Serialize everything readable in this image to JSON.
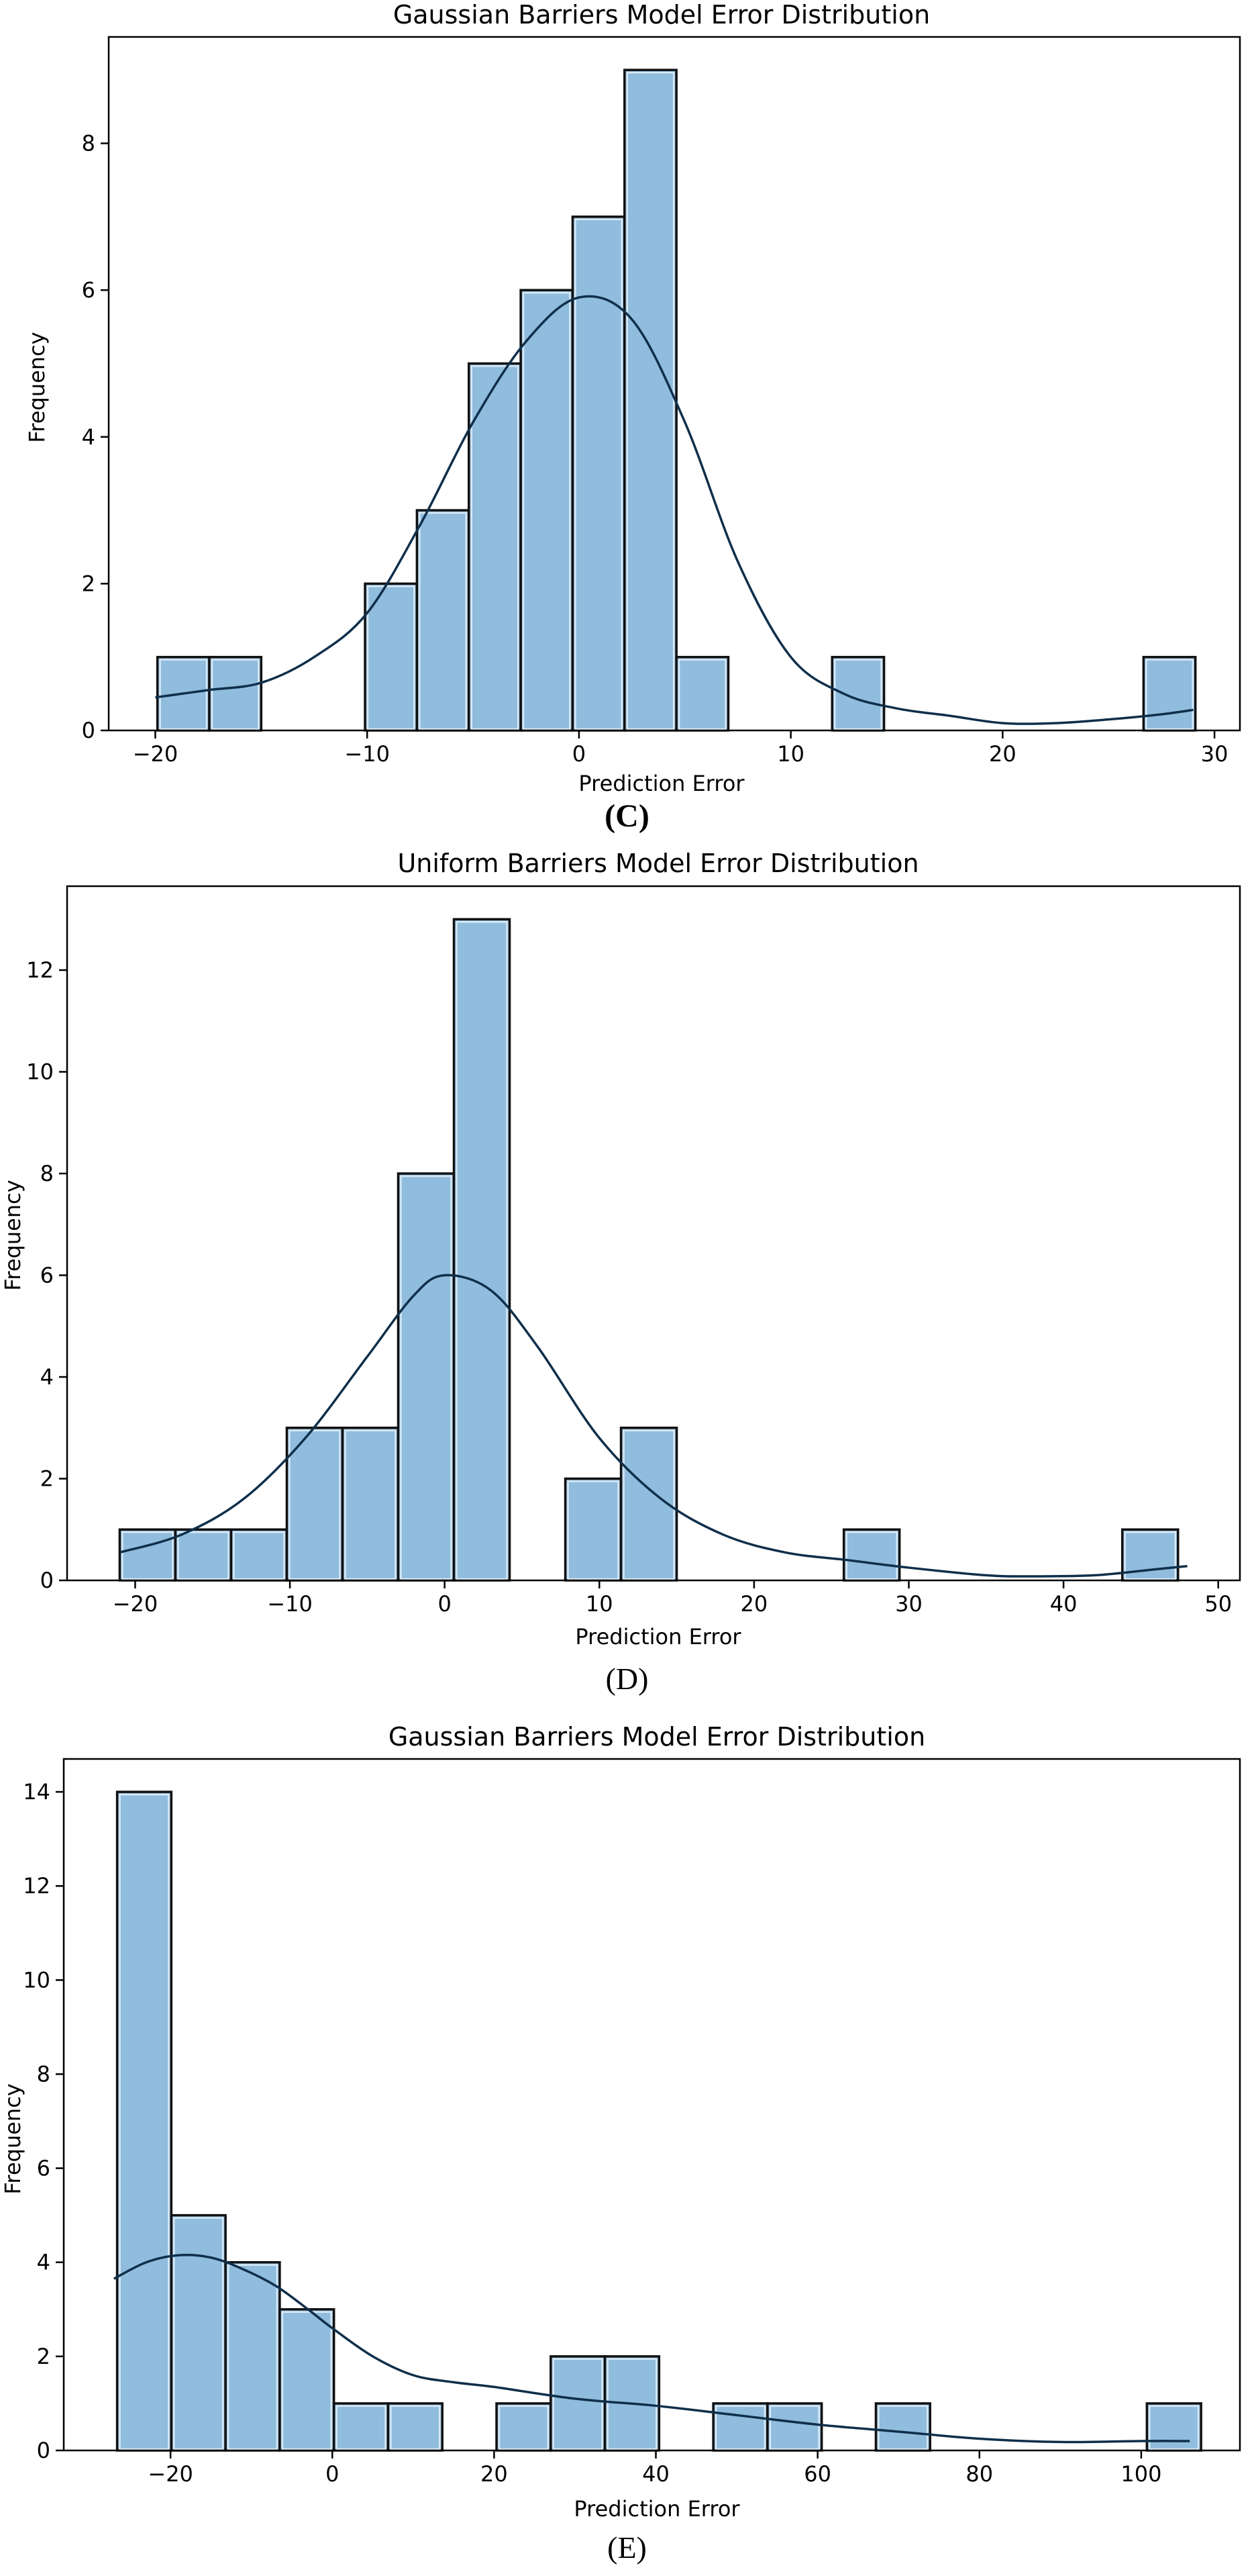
{
  "charts": [
    {
      "title": "Gaussian Barriers Model Error Distribution",
      "xlabel": "Prediction Error",
      "ylabel": "Frequency",
      "panel_label": "(C)"
    },
    {
      "title": "Uniform Barriers Model Error Distribution",
      "xlabel": "Prediction Error",
      "ylabel": "Frequency",
      "panel_label": "(D)"
    },
    {
      "title": "Gaussian Barriers Model Error Distribution",
      "xlabel": "Prediction Error",
      "ylabel": "Frequency",
      "panel_label": "(E)"
    }
  ],
  "colors": {
    "bar_fill": "#90bcdd",
    "bar_edge": "#111111",
    "bar_inner": "#d8e8f4",
    "kde": "#0f2f4a",
    "axis": "#000000"
  },
  "chart_data": [
    {
      "type": "bar",
      "title": "Gaussian Barriers Model Error Distribution",
      "xlabel": "Prediction Error",
      "ylabel": "Frequency",
      "xlim": [
        -22.2,
        31.2
      ],
      "ylim": [
        0,
        9.45
      ],
      "xticks": [
        -20,
        -10,
        0,
        10,
        20,
        30
      ],
      "yticks": [
        0,
        2,
        4,
        6,
        8
      ],
      "bin_edges": [
        -19.9,
        -17.45,
        -15.0,
        -12.55,
        -10.1,
        -7.65,
        -5.2,
        -2.75,
        -0.3,
        2.15,
        4.6,
        7.05,
        9.5,
        11.95,
        14.4,
        16.85,
        19.3,
        21.75,
        24.2,
        26.65,
        29.1
      ],
      "values": [
        1,
        1,
        0,
        0,
        2,
        3,
        5,
        6,
        7,
        9,
        1,
        0,
        0,
        1,
        0,
        0,
        0,
        0,
        0,
        1
      ],
      "kde": {
        "x": [
          -20,
          -17.5,
          -15,
          -12.5,
          -10,
          -7.5,
          -5,
          -2.5,
          0,
          2.5,
          5,
          7.5,
          10,
          12.5,
          15,
          17.5,
          20,
          22.5,
          25,
          27.5,
          29
        ],
        "y": [
          0.45,
          0.55,
          0.65,
          1.0,
          1.6,
          2.8,
          4.2,
          5.3,
          5.9,
          5.6,
          4.2,
          2.3,
          1.0,
          0.5,
          0.3,
          0.2,
          0.1,
          0.1,
          0.15,
          0.22,
          0.28
        ]
      }
    },
    {
      "type": "bar",
      "title": "Uniform Barriers Model Error Distribution",
      "xlabel": "Prediction Error",
      "ylabel": "Frequency",
      "xlim": [
        -24.4,
        51.4
      ],
      "ylim": [
        0,
        13.65
      ],
      "xticks": [
        -20,
        -10,
        0,
        10,
        20,
        30,
        40,
        50
      ],
      "yticks": [
        0,
        2,
        4,
        6,
        8,
        10,
        12
      ],
      "bin_edges": [
        -21.0,
        -17.4,
        -13.8,
        -10.2,
        -6.6,
        -3.0,
        0.6,
        4.2,
        7.8,
        11.4,
        15.0,
        18.6,
        22.2,
        25.8,
        29.4,
        33.0,
        36.6,
        40.2,
        43.8,
        47.4
      ],
      "values": [
        1,
        1,
        1,
        3,
        3,
        8,
        13,
        0,
        2,
        3,
        0,
        0,
        0,
        1,
        0,
        0,
        0,
        0,
        1
      ],
      "kde": {
        "x": [
          -21,
          -17,
          -13,
          -9,
          -5,
          -2,
          0,
          3,
          6,
          10,
          14,
          18,
          22,
          26,
          30,
          35,
          38,
          42,
          46,
          48
        ],
        "y": [
          0.55,
          0.9,
          1.6,
          2.8,
          4.4,
          5.6,
          6.0,
          5.7,
          4.6,
          2.8,
          1.6,
          0.9,
          0.55,
          0.4,
          0.25,
          0.1,
          0.08,
          0.1,
          0.22,
          0.28
        ]
      }
    },
    {
      "type": "bar",
      "title": "Gaussian Barriers Model Error Distribution",
      "xlabel": "Prediction Error",
      "ylabel": "Frequency",
      "xlim": [
        -33.2,
        112.2
      ],
      "ylim": [
        0,
        14.7
      ],
      "xticks": [
        -20,
        0,
        20,
        40,
        60,
        80,
        100
      ],
      "yticks": [
        0,
        2,
        4,
        6,
        8,
        10,
        12,
        14
      ],
      "bin_edges": [
        -26.6,
        -19.9,
        -13.2,
        -6.5,
        0.2,
        6.9,
        13.6,
        20.3,
        27.0,
        33.7,
        40.4,
        47.1,
        53.8,
        60.5,
        67.2,
        73.9,
        80.6,
        87.3,
        94.0,
        100.7,
        107.4
      ],
      "values": [
        14,
        5,
        4,
        3,
        1,
        1,
        0,
        1,
        2,
        2,
        0,
        1,
        1,
        0,
        1,
        0,
        0,
        0,
        0,
        1
      ],
      "kde": {
        "x": [
          -27,
          -23,
          -19,
          -15,
          -11,
          -7,
          -3,
          0,
          5,
          10,
          15,
          20,
          30,
          40,
          50,
          60,
          70,
          80,
          90,
          100,
          106
        ],
        "y": [
          3.65,
          4.0,
          4.15,
          4.1,
          3.85,
          3.5,
          3.0,
          2.6,
          2.0,
          1.6,
          1.45,
          1.35,
          1.1,
          0.95,
          0.75,
          0.55,
          0.4,
          0.25,
          0.18,
          0.2,
          0.2
        ]
      }
    }
  ]
}
